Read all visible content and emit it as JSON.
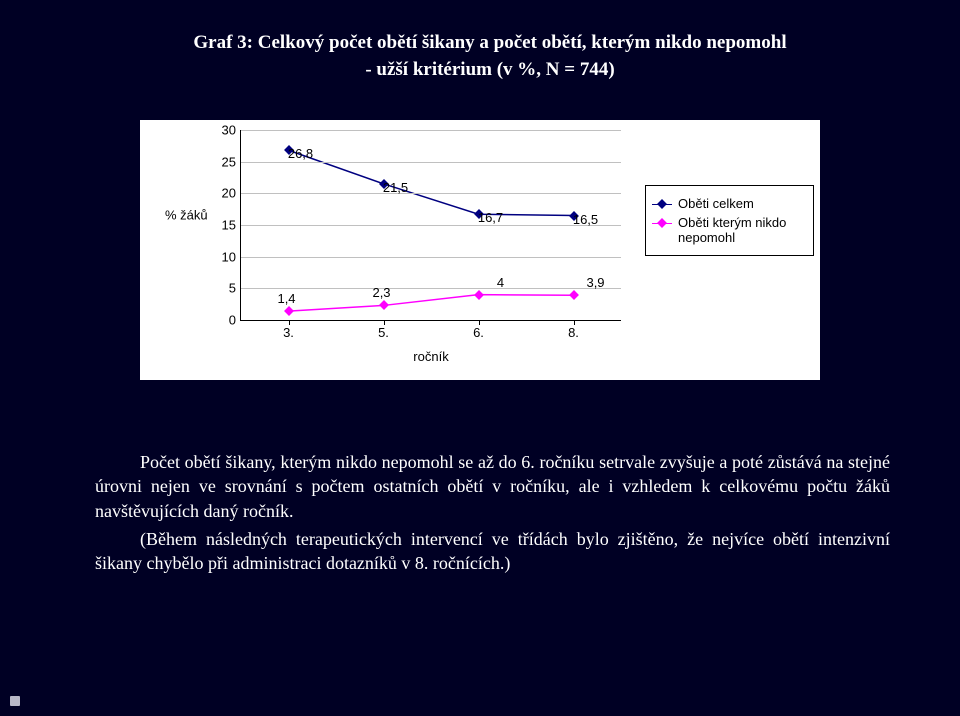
{
  "title": {
    "line1": "Graf 3: Celkový počet obětí šikany a počet obětí, kterým nikdo nepomohl",
    "line2": "- užší kritérium (v %, N = 744)",
    "color": "#ffffff",
    "fontsize": 19
  },
  "background_color": "#000024",
  "chart": {
    "type": "line",
    "background": "#ffffff",
    "x_axis": {
      "title": "ročník",
      "categories": [
        "3.",
        "5.",
        "6.",
        "8."
      ],
      "fontsize": 13
    },
    "y_axis": {
      "title": "% žáků",
      "min": 0,
      "max": 30,
      "step": 5,
      "fontsize": 13,
      "grid_color": "#c0c0c0"
    },
    "series": [
      {
        "name": "Oběti celkem",
        "color": "#000080",
        "marker": "diamond",
        "values": [
          26.8,
          21.5,
          16.7,
          16.5
        ],
        "labels": [
          "26,8",
          "21,5",
          "16,7",
          "16,5"
        ]
      },
      {
        "name": "Oběti kterým nikdo nepomohl",
        "color": "#ff00ff",
        "marker": "square",
        "values": [
          1.4,
          2.3,
          4,
          3.9
        ],
        "labels": [
          "1,4",
          "2,3",
          "4",
          "3,9"
        ]
      }
    ],
    "legend": {
      "position": "right",
      "border_color": "#000000"
    },
    "label_fontsize": 13
  },
  "paragraphs": {
    "p1": "Počet obětí šikany, kterým nikdo nepomohl se až do 6. ročníku setrvale zvyšuje a poté zůstává na stejné úrovni nejen ve srovnání s počtem ostatních obětí v ročníku, ale i vzhledem k celkovému počtu žáků navštěvujících daný ročník.",
    "p2": "(Během následných terapeutických intervencí ve třídách bylo zjištěno, že nejvíce obětí intenzivní šikany chybělo při administraci dotazníků v 8. ročnících.)",
    "color": "#ffffff",
    "fontsize": 18
  }
}
